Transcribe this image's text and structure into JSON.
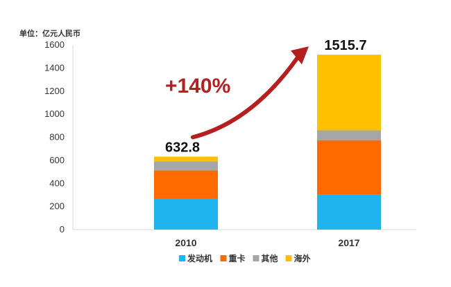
{
  "chart_data": {
    "type": "bar",
    "stacked": true,
    "unit_label": "单位：亿元人民币",
    "categories": [
      "2010",
      "2017"
    ],
    "series": [
      {
        "name": "发动机",
        "color": "#1fb4ee",
        "values": [
          270,
          305
        ]
      },
      {
        "name": "重卡",
        "color": "#ff6a00",
        "values": [
          242,
          470
        ]
      },
      {
        "name": "其他",
        "color": "#a6a6a6",
        "values": [
          80,
          85
        ]
      },
      {
        "name": "海外",
        "color": "#ffc000",
        "values": [
          40.8,
          655.7
        ]
      }
    ],
    "totals": [
      "632.8",
      "1515.7"
    ],
    "annotation": "+140%",
    "ylim": [
      0,
      1600
    ],
    "yticks": [
      0,
      200,
      400,
      600,
      800,
      1000,
      1200,
      1400,
      1600
    ],
    "grid": false,
    "legend": "bottom",
    "arrow_color": "#b51f1f"
  }
}
